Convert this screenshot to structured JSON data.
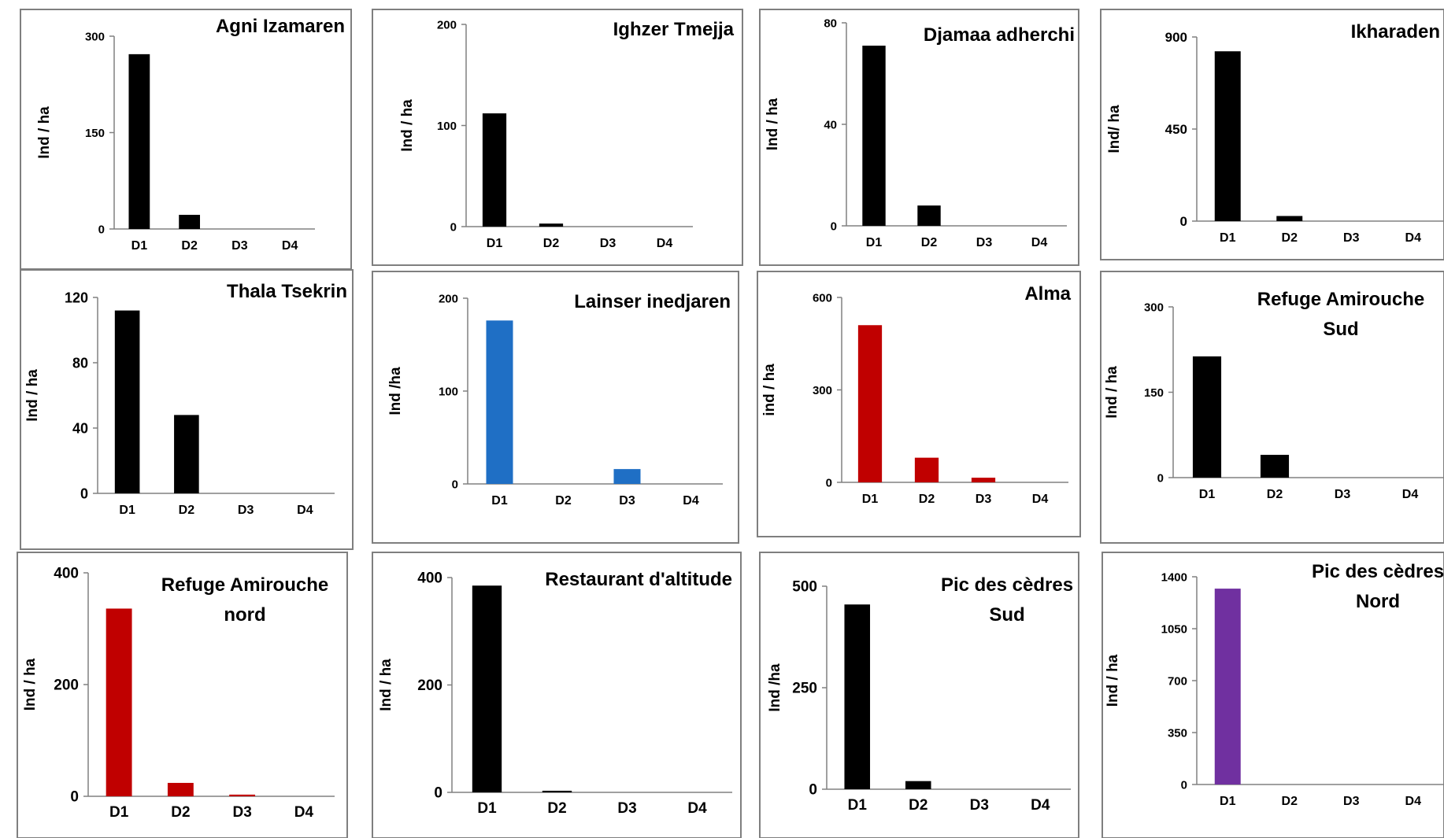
{
  "chart_data": [
    {
      "type": "bar",
      "title": [
        "Agni Izamaren"
      ],
      "ylabel": "Ind / ha",
      "categories": [
        "D1",
        "D2",
        "D3",
        "D4"
      ],
      "values": [
        272,
        22,
        0,
        0
      ],
      "ylim": [
        0,
        300
      ],
      "yticks": [
        0,
        150,
        300
      ],
      "color": "#000000"
    },
    {
      "type": "bar",
      "title": [
        "Ighzer Tmejja"
      ],
      "ylabel": "Ind / ha",
      "categories": [
        "D1",
        "D2",
        "D3",
        "D4"
      ],
      "values": [
        112,
        3,
        0,
        0
      ],
      "ylim": [
        0,
        200
      ],
      "yticks": [
        0,
        100,
        200
      ],
      "color": "#000000"
    },
    {
      "type": "bar",
      "title": [
        "Djamaa adherchi"
      ],
      "ylabel": "Ind / ha",
      "categories": [
        "D1",
        "D2",
        "D3",
        "D4"
      ],
      "values": [
        71,
        8,
        0,
        0
      ],
      "ylim": [
        0,
        80
      ],
      "yticks": [
        0,
        40,
        80
      ],
      "color": "#000000"
    },
    {
      "type": "bar",
      "title": [
        "Ikharaden"
      ],
      "ylabel": "Ind/ ha",
      "categories": [
        "D1",
        "D2",
        "D3",
        "D4"
      ],
      "values": [
        830,
        25,
        0,
        0
      ],
      "ylim": [
        0,
        900
      ],
      "yticks": [
        0,
        450,
        900
      ],
      "color": "#000000"
    },
    {
      "type": "bar",
      "title": [
        "Thala Tsekrin"
      ],
      "ylabel": "Ind / ha",
      "categories": [
        "D1",
        "D2",
        "D3",
        "D4"
      ],
      "values": [
        112,
        48,
        0,
        0
      ],
      "ylim": [
        0,
        120
      ],
      "yticks": [
        0,
        40,
        80,
        120
      ],
      "color": "#000000"
    },
    {
      "type": "bar",
      "title": [
        "Lainser inedjaren"
      ],
      "ylabel": "Ind /ha",
      "categories": [
        "D1",
        "D2",
        "D3",
        "D4"
      ],
      "values": [
        176,
        0,
        16,
        0
      ],
      "ylim": [
        0,
        200
      ],
      "yticks": [
        0,
        100,
        200
      ],
      "color": "#1f6fc5"
    },
    {
      "type": "bar",
      "title": [
        "Alma"
      ],
      "ylabel": "ind / ha",
      "categories": [
        "D1",
        "D2",
        "D3",
        "D4"
      ],
      "values": [
        510,
        80,
        15,
        0
      ],
      "ylim": [
        0,
        600
      ],
      "yticks": [
        0,
        300,
        600
      ],
      "color": "#c00000"
    },
    {
      "type": "bar",
      "title": [
        "Refuge Amirouche",
        "Sud"
      ],
      "ylabel": "Ind / ha",
      "categories": [
        "D1",
        "D2",
        "D3",
        "D4"
      ],
      "values": [
        213,
        40,
        0,
        0
      ],
      "ylim": [
        0,
        300
      ],
      "yticks": [
        0,
        150,
        300
      ],
      "color": "#000000"
    },
    {
      "type": "bar",
      "title": [
        "Refuge Amirouche",
        "nord"
      ],
      "ylabel": "Ind / ha",
      "categories": [
        "D1",
        "D2",
        "D3",
        "D4"
      ],
      "values": [
        336,
        24,
        3,
        0
      ],
      "ylim": [
        0,
        400
      ],
      "yticks": [
        0,
        200,
        400
      ],
      "color": "#c00000"
    },
    {
      "type": "bar",
      "title": [
        "Restaurant  d'altitude"
      ],
      "ylabel": "Ind / ha",
      "categories": [
        "D1",
        "D2",
        "D3",
        "D4"
      ],
      "values": [
        385,
        3,
        0,
        0
      ],
      "ylim": [
        0,
        400
      ],
      "yticks": [
        0,
        200,
        400
      ],
      "color": "#000000"
    },
    {
      "type": "bar",
      "title": [
        "Pic des cèdres",
        "Sud"
      ],
      "ylabel": "Ind /ha",
      "categories": [
        "D1",
        "D2",
        "D3",
        "D4"
      ],
      "values": [
        455,
        20,
        0,
        0
      ],
      "ylim": [
        0,
        500
      ],
      "yticks": [
        0,
        250,
        500
      ],
      "color": "#000000"
    },
    {
      "type": "bar",
      "title": [
        "Pic des cèdres",
        "Nord"
      ],
      "ylabel": "Ind / ha",
      "categories": [
        "D1",
        "D2",
        "D3",
        "D4"
      ],
      "values": [
        1320,
        0,
        0,
        0
      ],
      "ylim": [
        0,
        1400
      ],
      "yticks": [
        0,
        350,
        700,
        1050,
        1400
      ],
      "color": "#7030a0"
    }
  ]
}
